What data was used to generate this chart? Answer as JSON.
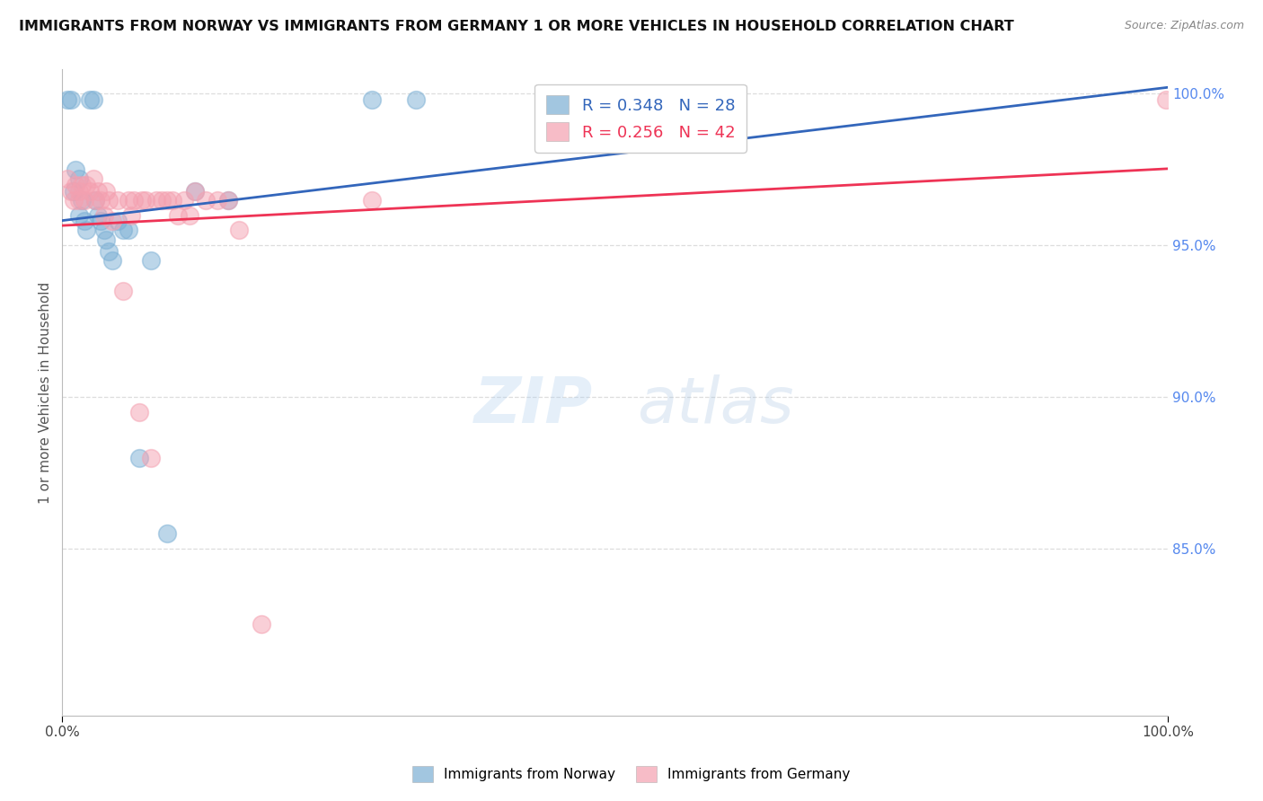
{
  "title": "IMMIGRANTS FROM NORWAY VS IMMIGRANTS FROM GERMANY 1 OR MORE VEHICLES IN HOUSEHOLD CORRELATION CHART",
  "source": "Source: ZipAtlas.com",
  "ylabel": "1 or more Vehicles in Household",
  "xlim": [
    0.0,
    1.0
  ],
  "ylim": [
    0.795,
    1.008
  ],
  "yticks_right": [
    1.0,
    0.95,
    0.9,
    0.85
  ],
  "ytick_labels_right": [
    "100.0%",
    "95.0%",
    "90.0%",
    "85.0%"
  ],
  "norway_R": 0.348,
  "norway_N": 28,
  "germany_R": 0.256,
  "germany_N": 42,
  "norway_color": "#7BAFD4",
  "germany_color": "#F4A0B0",
  "norway_line_color": "#3366BB",
  "germany_line_color": "#EE3355",
  "background_color": "#FFFFFF",
  "grid_color": "#DDDDDD",
  "watermark_zip": "ZIP",
  "watermark_atlas": "atlas",
  "norway_x": [
    0.005,
    0.008,
    0.01,
    0.012,
    0.015,
    0.015,
    0.018,
    0.02,
    0.022,
    0.025,
    0.028,
    0.03,
    0.032,
    0.035,
    0.038,
    0.04,
    0.042,
    0.045,
    0.05,
    0.055,
    0.06,
    0.07,
    0.08,
    0.095,
    0.12,
    0.15,
    0.28,
    0.32
  ],
  "norway_y": [
    0.998,
    0.998,
    0.968,
    0.975,
    0.972,
    0.96,
    0.965,
    0.958,
    0.955,
    0.998,
    0.998,
    0.965,
    0.96,
    0.958,
    0.955,
    0.952,
    0.948,
    0.945,
    0.958,
    0.955,
    0.955,
    0.88,
    0.945,
    0.855,
    0.968,
    0.965,
    0.998,
    0.998
  ],
  "germany_x": [
    0.005,
    0.008,
    0.01,
    0.012,
    0.015,
    0.015,
    0.018,
    0.02,
    0.022,
    0.025,
    0.028,
    0.03,
    0.032,
    0.035,
    0.038,
    0.04,
    0.042,
    0.045,
    0.05,
    0.055,
    0.06,
    0.062,
    0.065,
    0.07,
    0.072,
    0.075,
    0.08,
    0.085,
    0.09,
    0.095,
    0.1,
    0.105,
    0.11,
    0.115,
    0.12,
    0.13,
    0.14,
    0.15,
    0.16,
    0.18,
    0.28,
    0.998
  ],
  "germany_y": [
    0.972,
    0.968,
    0.965,
    0.97,
    0.968,
    0.965,
    0.97,
    0.965,
    0.97,
    0.968,
    0.972,
    0.965,
    0.968,
    0.965,
    0.96,
    0.968,
    0.965,
    0.958,
    0.965,
    0.935,
    0.965,
    0.96,
    0.965,
    0.895,
    0.965,
    0.965,
    0.88,
    0.965,
    0.965,
    0.965,
    0.965,
    0.96,
    0.965,
    0.96,
    0.968,
    0.965,
    0.965,
    0.965,
    0.955,
    0.825,
    0.965,
    0.998
  ]
}
